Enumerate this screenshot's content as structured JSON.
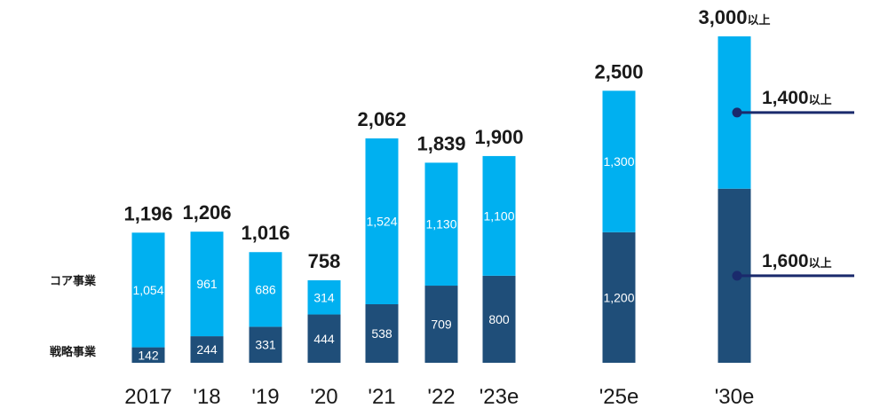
{
  "chart_data": {
    "type": "bar",
    "stacked": true,
    "categories": [
      "2017",
      "'18",
      "'19",
      "'20",
      "'21",
      "'22",
      "'23e",
      "'25e",
      "'30e"
    ],
    "series": [
      {
        "name": "戦略事業",
        "values": [
          142,
          244,
          331,
          444,
          538,
          709,
          800,
          1200,
          1600
        ],
        "color": "#1f4e79"
      },
      {
        "name": "コア事業",
        "values": [
          1054,
          961,
          686,
          314,
          1524,
          1130,
          1100,
          1300,
          1400
        ],
        "color": "#00b0f0"
      }
    ],
    "totals": [
      "1,196",
      "1,206",
      "1,016",
      "758",
      "2,062",
      "1,839",
      "1,900",
      "2,500",
      "3,000"
    ],
    "total_suffix": [
      "",
      "",
      "",
      "",
      "",
      "",
      "",
      "",
      "以上"
    ],
    "segment_labels": {
      "strategic": [
        "142",
        "244",
        "331",
        "444",
        "538",
        "709",
        "800",
        "1,200",
        ""
      ],
      "core": [
        "1,054",
        "961",
        "686",
        "314",
        "1,524",
        "1,130",
        "1,100",
        "1,300",
        ""
      ]
    },
    "callouts": [
      {
        "value": "1,400",
        "suffix": "以上",
        "series": "コア事業"
      },
      {
        "value": "1,600",
        "suffix": "以上",
        "series": "戦略事業"
      }
    ],
    "ylim": [
      0,
      3000
    ],
    "grid": false,
    "title": "",
    "xlabel": "",
    "ylabel": ""
  }
}
